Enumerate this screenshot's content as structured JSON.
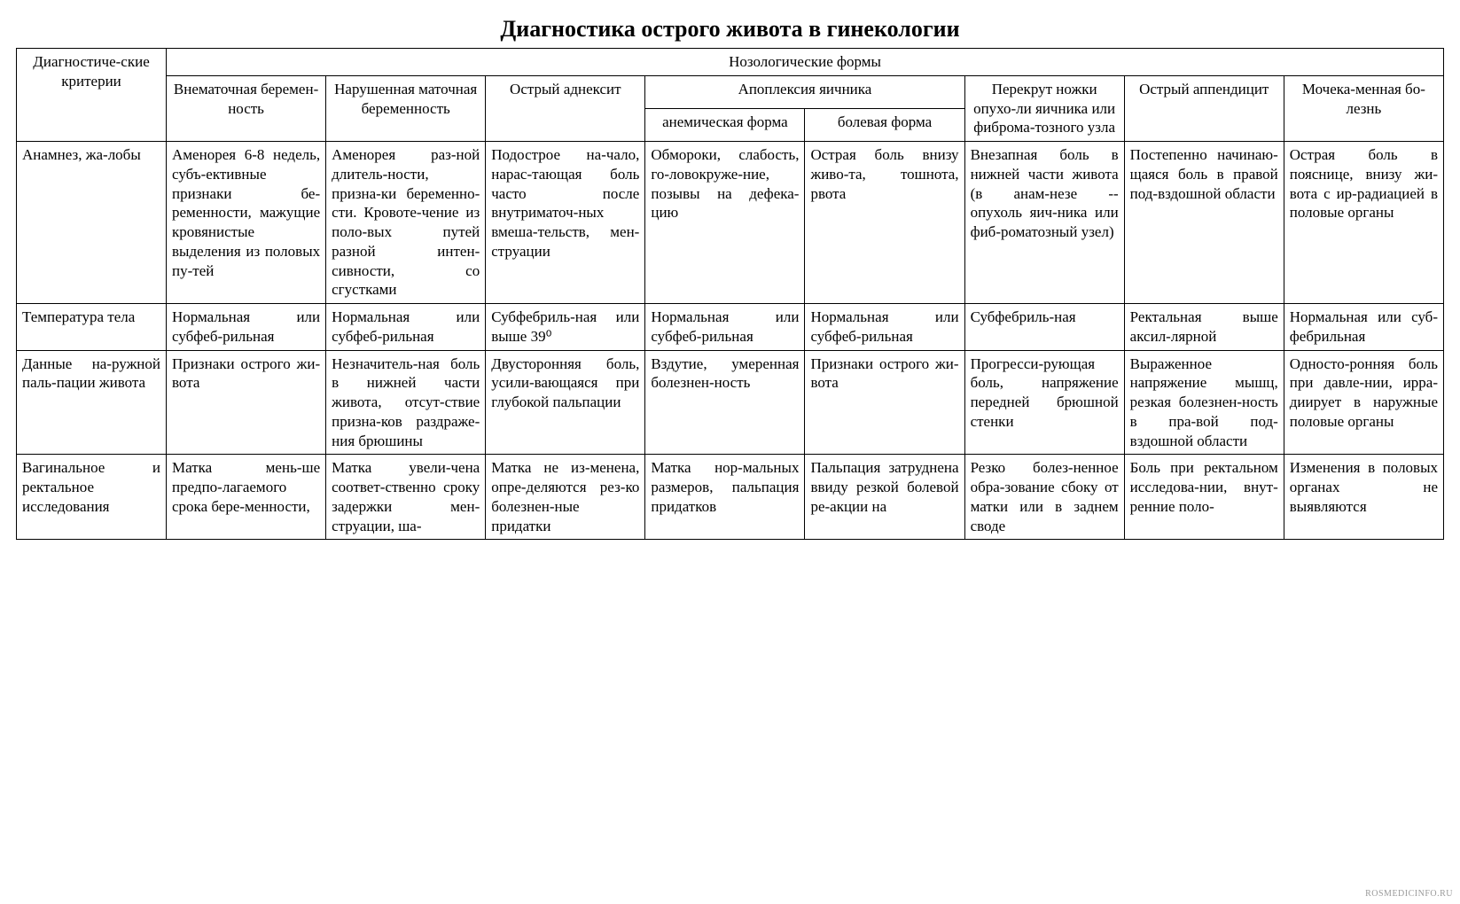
{
  "title": "Диагностика острого живота в гинекологии",
  "watermark": "ROSMEDICINFO.RU",
  "table": {
    "border_color": "#000000",
    "background_color": "#ffffff",
    "font_family": "Times New Roman",
    "base_fontsize": 17,
    "title_fontsize": 26,
    "header": {
      "criteria": "Диагностиче-ские критерии",
      "super": "Нозологические формы",
      "apoplexy": "Апоплексия яичника",
      "cols": {
        "c1": "Внематочная беремен-ность",
        "c2": "Нарушенная маточная беременность",
        "c3": "Острый аднексит",
        "c4": "анемическая форма",
        "c5": "болевая форма",
        "c6": "Перекрут ножки опухо-ли яичника или фиброма-тозного узла",
        "c7": "Острый аппендицит",
        "c8": "Мочека-менная бо-лезнь"
      }
    },
    "rows": [
      {
        "criteria": "Анамнез, жа-лобы",
        "c1": "Аменорея 6-8 недель, субъ-ективные признаки бе-ременности, мажущие кровянистые выделения из половых пу-тей",
        "c2": "Аменорея раз-ной длитель-ности, призна-ки беременно-сти. Кровоте-чение из поло-вых путей разной интен-сивности, со сгустками",
        "c3": "Подострое на-чало, нарас-тающая боль часто после внутриматоч-ных вмеша-тельств, мен-струации",
        "c4": "Обмороки, слабость, го-ловокруже-ние, позывы на дефека-цию",
        "c5": "Острая боль внизу живо-та, тошнота, рвота",
        "c6": "Внезапная боль в нижней части живота (в анам-незе -- опухоль яич-ника или фиб-роматозный узел)",
        "c7": "Постепенно начинаю-щаяся боль в правой под-вздошной области",
        "c8": "Острая боль в пояснице, внизу жи-вота с ир-радиацией в половые органы"
      },
      {
        "criteria": "Температура тела",
        "c1": "Нормальная или субфеб-рильная",
        "c2": "Нормальная или субфеб-рильная",
        "c3": "Субфебриль-ная или выше 39⁰",
        "c4": "Нормальная или субфеб-рильная",
        "c5": "Нормальная или субфеб-рильная",
        "c6": "Субфебриль-ная",
        "c7": "Ректальная выше аксил-лярной",
        "c8": "Нормальная или суб-фебрильная"
      },
      {
        "criteria": "Данные на-ружной паль-пации живота",
        "c1": "Признаки острого жи-вота",
        "c2": "Незначитель-ная боль в нижней части живота, отсут-ствие призна-ков раздраже-ния брюшины",
        "c3": "Двусторонняя боль, усили-вающаяся при глубокой пальпации",
        "c4": "Вздутие, умеренная болезнен-ность",
        "c5": "Признаки острого жи-вота",
        "c6": "Прогресси-рующая боль, напряжение передней брюшной стенки",
        "c7": "Выраженное напряжение мышц, резкая болезнен-ность в пра-вой под-вздошной области",
        "c8": "Односто-ронняя боль при давле-нии, ирра-диирует в наружные половые органы"
      },
      {
        "criteria": "Вагинальное и ректальное исследования",
        "c1": "Матка мень-ше предпо-лагаемого срока бере-менности,",
        "c2": "Матка увели-чена соответ-ственно сроку задержки мен-струации, ша-",
        "c3": "Матка не из-менена, опре-деляются рез-ко болезнен-ные придатки",
        "c4": "Матка нор-мальных размеров, пальпация придатков",
        "c5": "Пальпация затруднена ввиду резкой болевой ре-акции на",
        "c6": "Резко болез-ненное обра-зование сбоку от матки или в заднем своде",
        "c7": "Боль при ректальном исследова-нии, внут-ренние поло-",
        "c8": "Изменения в половых органах не выявляются"
      }
    ]
  }
}
